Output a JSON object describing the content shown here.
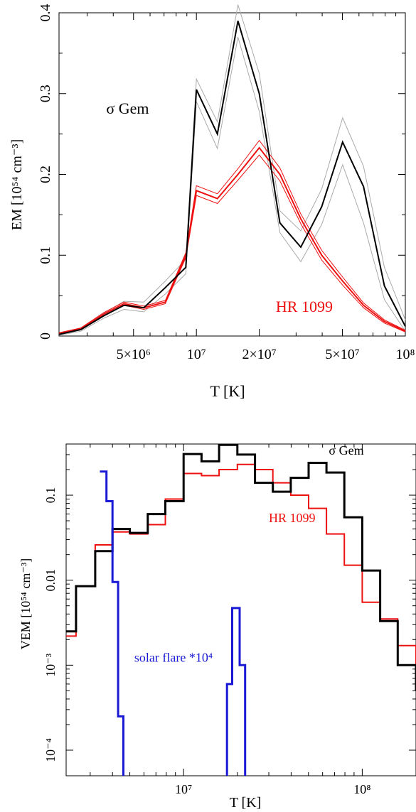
{
  "chart_data": [
    {
      "type": "line",
      "xscale": "log",
      "xlim": [
        2200000,
        100000000
      ],
      "ylim": [
        0,
        0.4
      ],
      "xlabel": "T [K]",
      "ylabel": "EM [10⁵⁴ cm⁻³]",
      "xticks": [
        {
          "value": 5000000,
          "label": "5×10⁶"
        },
        {
          "value": 10000000,
          "label": "10⁷"
        },
        {
          "value": 20000000,
          "label": "2×10⁷"
        },
        {
          "value": 50000000,
          "label": "5×10⁷"
        },
        {
          "value": 100000000,
          "label": "10⁸"
        }
      ],
      "yticks": [
        {
          "value": 0,
          "label": "0"
        },
        {
          "value": 0.1,
          "label": "0.1"
        },
        {
          "value": 0.2,
          "label": "0.2"
        },
        {
          "value": 0.3,
          "label": "0.3"
        },
        {
          "value": 0.4,
          "label": "0.4"
        }
      ],
      "annotations": [
        {
          "text": "σ Gem",
          "color": "#000000",
          "at": [
            3700000,
            0.275
          ]
        },
        {
          "text": "HR 1099",
          "color": "#ee1111",
          "at": [
            24000000,
            0.03
          ]
        }
      ],
      "series": [
        {
          "name": "σ Gem",
          "color": "#000000",
          "width": 2,
          "x": [
            2200000,
            2800000,
            3600000,
            4500000,
            5600000,
            7100000,
            8900000,
            10000000,
            12600000,
            15800000,
            20000000,
            25100000,
            31600000,
            39800000,
            50100000,
            63100000,
            79400000,
            100000000
          ],
          "y": [
            0.002,
            0.008,
            0.025,
            0.038,
            0.035,
            0.06,
            0.085,
            0.305,
            0.25,
            0.39,
            0.3,
            0.14,
            0.11,
            0.16,
            0.24,
            0.185,
            0.062,
            0.012
          ]
        },
        {
          "name": "σ Gem upper",
          "color": "#aaaaaa",
          "width": 1,
          "x": [
            2200000,
            2800000,
            3600000,
            4500000,
            5600000,
            7100000,
            8900000,
            10000000,
            12600000,
            15800000,
            20000000,
            25100000,
            31600000,
            39800000,
            50100000,
            63100000,
            79400000,
            100000000
          ],
          "y": [
            0.003,
            0.01,
            0.028,
            0.043,
            0.042,
            0.068,
            0.095,
            0.318,
            0.265,
            0.41,
            0.325,
            0.155,
            0.13,
            0.182,
            0.27,
            0.21,
            0.085,
            0.02
          ]
        },
        {
          "name": "σ Gem lower",
          "color": "#aaaaaa",
          "width": 1,
          "x": [
            2200000,
            2800000,
            3600000,
            4500000,
            5600000,
            7100000,
            8900000,
            10000000,
            12600000,
            15800000,
            20000000,
            25100000,
            31600000,
            39800000,
            50100000,
            63100000,
            79400000,
            100000000
          ],
          "y": [
            0.001,
            0.006,
            0.022,
            0.033,
            0.03,
            0.052,
            0.077,
            0.29,
            0.232,
            0.37,
            0.278,
            0.128,
            0.092,
            0.138,
            0.212,
            0.14,
            0.045,
            0.006
          ]
        },
        {
          "name": "HR 1099",
          "color": "#ee1111",
          "width": 2,
          "x": [
            2200000,
            2800000,
            3600000,
            4500000,
            5600000,
            7100000,
            8900000,
            10000000,
            12600000,
            15800000,
            20000000,
            25100000,
            31600000,
            39800000,
            50100000,
            63100000,
            79400000,
            100000000
          ],
          "y": [
            0.003,
            0.009,
            0.027,
            0.04,
            0.035,
            0.042,
            0.1,
            0.18,
            0.17,
            0.2,
            0.233,
            0.2,
            0.145,
            0.1,
            0.068,
            0.038,
            0.018,
            0.006
          ]
        },
        {
          "name": "HR 1099 upper",
          "color": "#ee1111",
          "width": 1,
          "x": [
            2200000,
            2800000,
            3600000,
            4500000,
            5600000,
            7100000,
            8900000,
            10000000,
            12600000,
            15800000,
            20000000,
            25100000,
            31600000,
            39800000,
            50100000,
            63100000,
            79400000,
            100000000
          ],
          "y": [
            0.004,
            0.01,
            0.029,
            0.042,
            0.037,
            0.044,
            0.103,
            0.186,
            0.176,
            0.207,
            0.242,
            0.208,
            0.151,
            0.106,
            0.073,
            0.041,
            0.02,
            0.007
          ]
        },
        {
          "name": "HR 1099 lower",
          "color": "#ee1111",
          "width": 1,
          "x": [
            2200000,
            2800000,
            3600000,
            4500000,
            5600000,
            7100000,
            8900000,
            10000000,
            12600000,
            15800000,
            20000000,
            25100000,
            31600000,
            39800000,
            50100000,
            63100000,
            79400000,
            100000000
          ],
          "y": [
            0.002,
            0.008,
            0.025,
            0.038,
            0.033,
            0.04,
            0.097,
            0.174,
            0.164,
            0.193,
            0.224,
            0.192,
            0.139,
            0.094,
            0.063,
            0.035,
            0.016,
            0.005
          ]
        }
      ]
    },
    {
      "type": "line",
      "step": true,
      "xscale": "log",
      "yscale": "log",
      "xlim": [
        2200000,
        200000000
      ],
      "ylim": [
        5e-05,
        0.4
      ],
      "xlabel": "T [K]",
      "ylabel": "VEM [10⁵⁴ cm⁻³]",
      "xticks": [
        {
          "value": 10000000,
          "label": "10⁷"
        },
        {
          "value": 100000000,
          "label": "10⁸"
        }
      ],
      "yticks": [
        {
          "value": 0.1,
          "label": "0.1"
        },
        {
          "value": 0.01,
          "label": "0.01"
        },
        {
          "value": 0.001,
          "label": "10⁻³"
        },
        {
          "value": 0.0001,
          "label": "10⁻⁴"
        }
      ],
      "annotations": [
        {
          "text": "σ Gem",
          "color": "#000000",
          "at": [
            65000000,
            0.3
          ]
        },
        {
          "text": "HR 1099",
          "color": "#ee1111",
          "at": [
            30000000,
            0.048
          ]
        },
        {
          "text": "solar flare *10⁴",
          "color": "#1a1ad6",
          "at": [
            5300000,
            0.0011
          ]
        }
      ],
      "series": [
        {
          "name": "σ Gem",
          "color": "#000000",
          "width": 3,
          "edges": [
            2200000,
            2500000,
            3200000,
            4000000,
            5000000,
            6300000,
            7900000,
            10000000,
            12600000,
            15800000,
            20000000,
            25100000,
            31600000,
            39800000,
            50100000,
            63100000,
            79400000,
            100000000,
            126000000,
            158000000,
            200000000
          ],
          "values": [
            0.0025,
            0.0085,
            0.022,
            0.04,
            0.036,
            0.06,
            0.085,
            0.305,
            0.25,
            0.39,
            0.3,
            0.14,
            0.11,
            0.16,
            0.24,
            0.185,
            0.055,
            0.013,
            0.0033,
            0.001,
            0.0005
          ]
        },
        {
          "name": "HR 1099",
          "color": "#ee1111",
          "width": 2,
          "edges": [
            2200000,
            2500000,
            3200000,
            4000000,
            5000000,
            6300000,
            7900000,
            10000000,
            12600000,
            15800000,
            20000000,
            25100000,
            31600000,
            39800000,
            50100000,
            63100000,
            79400000,
            100000000,
            126000000,
            158000000,
            200000000
          ],
          "values": [
            0.0022,
            0.0085,
            0.026,
            0.037,
            0.035,
            0.045,
            0.09,
            0.18,
            0.17,
            0.2,
            0.23,
            0.2,
            0.14,
            0.1,
            0.07,
            0.035,
            0.015,
            0.0055,
            0.0035,
            0.0017,
            0.0009
          ]
        },
        {
          "name": "solar flare *10⁴",
          "color": "#1a1ad6",
          "width": 3,
          "points": [
            [
              3400000,
              0.19
            ],
            [
              3400000,
              0.19
            ],
            [
              3700000,
              0.19
            ],
            [
              3700000,
              0.085
            ],
            [
              4000000,
              0.085
            ],
            [
              4000000,
              0.0095
            ],
            [
              4300000,
              0.0095
            ],
            [
              4300000,
              0.00025
            ],
            [
              4600000,
              0.00025
            ],
            [
              4600000,
              4e-05
            ]
          ],
          "points2": [
            [
              17500000,
              4e-05
            ],
            [
              17500000,
              0.0006
            ],
            [
              18700000,
              0.0006
            ],
            [
              18700000,
              0.0047
            ],
            [
              20600000,
              0.0047
            ],
            [
              20600000,
              0.001
            ],
            [
              22100000,
              0.001
            ],
            [
              22100000,
              4e-05
            ]
          ]
        }
      ]
    }
  ]
}
